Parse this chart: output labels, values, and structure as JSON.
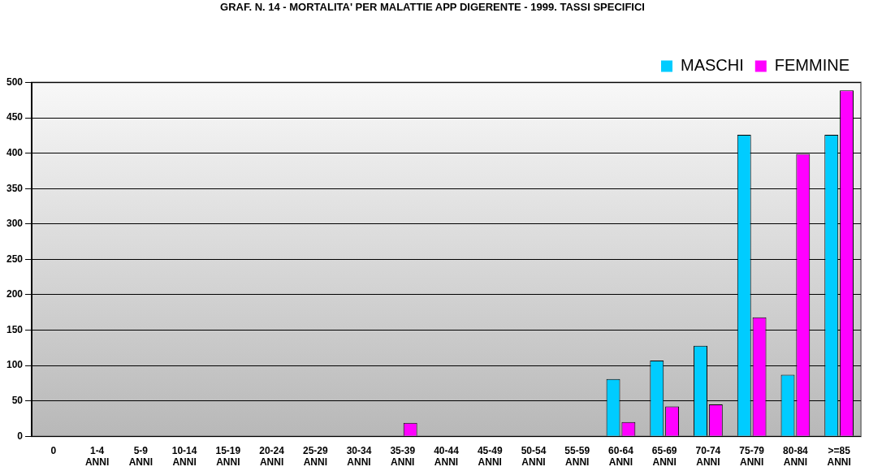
{
  "chart_data": {
    "type": "bar",
    "title": "GRAF. N. 14 - MORTALITA' PER MALATTIE APP DIGERENTE - 1999. TASSI SPECIFICI",
    "categories": [
      "0",
      "1-4\nANNI",
      "5-9\nANNI",
      "10-14\nANNI",
      "15-19\nANNI",
      "20-24\nANNI",
      "25-29\nANNI",
      "30-34\nANNI",
      "35-39\nANNI",
      "40-44\nANNI",
      "45-49\nANNI",
      "50-54\nANNI",
      "55-59\nANNI",
      "60-64\nANNI",
      "65-69\nANNI",
      "70-74\nANNI",
      "75-79\nANNI",
      "80-84\nANNI",
      ">=85\nANNI"
    ],
    "series": [
      {
        "name": "MASCHI",
        "color": "#00ccff",
        "values": [
          0,
          0,
          0,
          0,
          0,
          0,
          0,
          0,
          0,
          0,
          0,
          0,
          0,
          81,
          107,
          128,
          426,
          87,
          426
        ]
      },
      {
        "name": "FEMMINE",
        "color": "#ff00ff",
        "values": [
          0,
          0,
          0,
          0,
          0,
          0,
          0,
          0,
          19,
          0,
          0,
          0,
          0,
          20,
          42,
          45,
          168,
          399,
          489
        ]
      }
    ],
    "ylim": [
      0,
      500
    ],
    "yticks": [
      0,
      50,
      100,
      150,
      200,
      250,
      300,
      350,
      400,
      450,
      500
    ],
    "grid": "y",
    "legend": "top right"
  }
}
